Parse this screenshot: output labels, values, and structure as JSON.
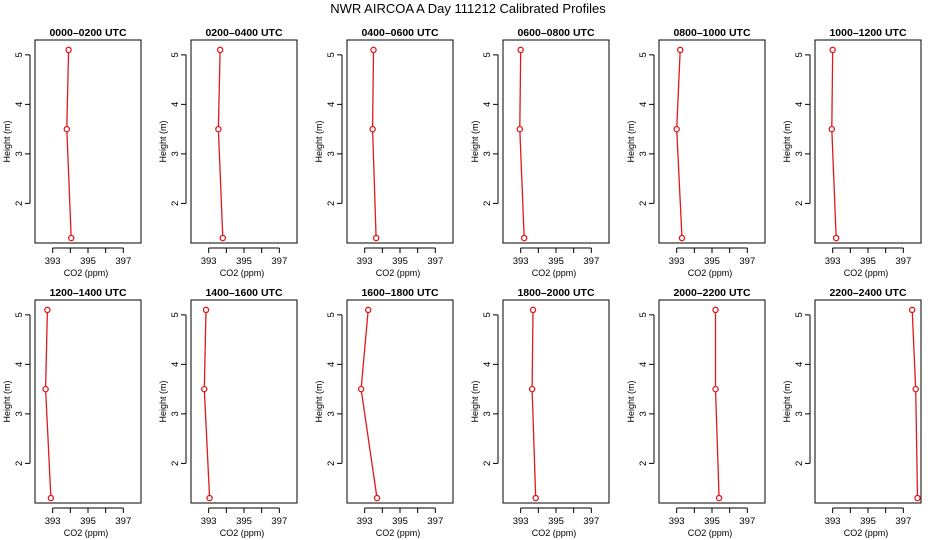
{
  "title": "NWR AIRCOA A  Day 111212  Calibrated Profiles",
  "colors": {
    "series": "#e0191c",
    "axis": "#000000",
    "background": "#ffffff"
  },
  "chart_data": [
    {
      "type": "line",
      "title": "0000–0200 UTC",
      "xlabel": "CO2 (ppm)",
      "ylabel": "Height (m)",
      "xlim": [
        392,
        398
      ],
      "ylim": [
        1.2,
        5.3
      ],
      "xticks": [
        393,
        395,
        397
      ],
      "yticks": [
        2,
        3,
        4,
        5
      ],
      "x": [
        393.9,
        393.8,
        394.05
      ],
      "y": [
        5.1,
        3.5,
        1.3
      ]
    },
    {
      "type": "line",
      "title": "0200–0400 UTC",
      "xlabel": "CO2 (ppm)",
      "ylabel": "Height (m)",
      "xlim": [
        392,
        398
      ],
      "ylim": [
        1.2,
        5.3
      ],
      "xticks": [
        393,
        395,
        397
      ],
      "yticks": [
        2,
        3,
        4,
        5
      ],
      "x": [
        393.65,
        393.55,
        393.8
      ],
      "y": [
        5.1,
        3.5,
        1.3
      ]
    },
    {
      "type": "line",
      "title": "0400–0600 UTC",
      "xlabel": "CO2 (ppm)",
      "ylabel": "Height (m)",
      "xlim": [
        392,
        398
      ],
      "ylim": [
        1.2,
        5.3
      ],
      "xticks": [
        393,
        395,
        397
      ],
      "yticks": [
        2,
        3,
        4,
        5
      ],
      "x": [
        393.5,
        393.45,
        393.65
      ],
      "y": [
        5.1,
        3.5,
        1.3
      ]
    },
    {
      "type": "line",
      "title": "0600–0800 UTC",
      "xlabel": "CO2 (ppm)",
      "ylabel": "Height (m)",
      "xlim": [
        392,
        398
      ],
      "ylim": [
        1.2,
        5.3
      ],
      "xticks": [
        393,
        395,
        397
      ],
      "yticks": [
        2,
        3,
        4,
        5
      ],
      "x": [
        393.0,
        392.95,
        393.2
      ],
      "y": [
        5.1,
        3.5,
        1.3
      ]
    },
    {
      "type": "line",
      "title": "0800–1000 UTC",
      "xlabel": "CO2 (ppm)",
      "ylabel": "Height (m)",
      "xlim": [
        392,
        398
      ],
      "ylim": [
        1.2,
        5.3
      ],
      "xticks": [
        393,
        395,
        397
      ],
      "yticks": [
        2,
        3,
        4,
        5
      ],
      "x": [
        393.2,
        393.0,
        393.3
      ],
      "y": [
        5.1,
        3.5,
        1.3
      ]
    },
    {
      "type": "line",
      "title": "1000–1200 UTC",
      "xlabel": "CO2 (ppm)",
      "ylabel": "Height (m)",
      "xlim": [
        392,
        398
      ],
      "ylim": [
        1.2,
        5.3
      ],
      "xticks": [
        393,
        395,
        397
      ],
      "yticks": [
        2,
        3,
        4,
        5
      ],
      "x": [
        393.0,
        392.95,
        393.2
      ],
      "y": [
        5.1,
        3.5,
        1.3
      ]
    },
    {
      "type": "line",
      "title": "1200–1400 UTC",
      "xlabel": "CO2 (ppm)",
      "ylabel": "Height (m)",
      "xlim": [
        392,
        398
      ],
      "ylim": [
        1.2,
        5.3
      ],
      "xticks": [
        393,
        395,
        397
      ],
      "yticks": [
        2,
        3,
        4,
        5
      ],
      "x": [
        392.7,
        392.6,
        392.9
      ],
      "y": [
        5.1,
        3.5,
        1.3
      ]
    },
    {
      "type": "line",
      "title": "1400–1600 UTC",
      "xlabel": "CO2 (ppm)",
      "ylabel": "Height (m)",
      "xlim": [
        392,
        398
      ],
      "ylim": [
        1.2,
        5.3
      ],
      "xticks": [
        393,
        395,
        397
      ],
      "yticks": [
        2,
        3,
        4,
        5
      ],
      "x": [
        392.85,
        392.75,
        393.05
      ],
      "y": [
        5.1,
        3.5,
        1.3
      ]
    },
    {
      "type": "line",
      "title": "1600–1800 UTC",
      "xlabel": "CO2 (ppm)",
      "ylabel": "Height (m)",
      "xlim": [
        392,
        398
      ],
      "ylim": [
        1.2,
        5.3
      ],
      "xticks": [
        393,
        395,
        397
      ],
      "yticks": [
        2,
        3,
        4,
        5
      ],
      "x": [
        393.2,
        392.8,
        393.7
      ],
      "y": [
        5.1,
        3.5,
        1.3
      ]
    },
    {
      "type": "line",
      "title": "1800–2000 UTC",
      "xlabel": "CO2 (ppm)",
      "ylabel": "Height (m)",
      "xlim": [
        392,
        398
      ],
      "ylim": [
        1.2,
        5.3
      ],
      "xticks": [
        393,
        395,
        397
      ],
      "yticks": [
        2,
        3,
        4,
        5
      ],
      "x": [
        393.7,
        393.65,
        393.85
      ],
      "y": [
        5.1,
        3.5,
        1.3
      ]
    },
    {
      "type": "line",
      "title": "2000–2200 UTC",
      "xlabel": "CO2 (ppm)",
      "ylabel": "Height (m)",
      "xlim": [
        392,
        398
      ],
      "ylim": [
        1.2,
        5.3
      ],
      "xticks": [
        393,
        395,
        397
      ],
      "yticks": [
        2,
        3,
        4,
        5
      ],
      "x": [
        395.2,
        395.2,
        395.4
      ],
      "y": [
        5.1,
        3.5,
        1.3
      ]
    },
    {
      "type": "line",
      "title": "2200–2400 UTC",
      "xlabel": "CO2 (ppm)",
      "ylabel": "Height (m)",
      "xlim": [
        392,
        398
      ],
      "ylim": [
        1.2,
        5.3
      ],
      "xticks": [
        393,
        395,
        397
      ],
      "yticks": [
        2,
        3,
        4,
        5
      ],
      "x": [
        397.5,
        397.7,
        397.8
      ],
      "y": [
        5.1,
        3.5,
        1.3
      ]
    }
  ]
}
